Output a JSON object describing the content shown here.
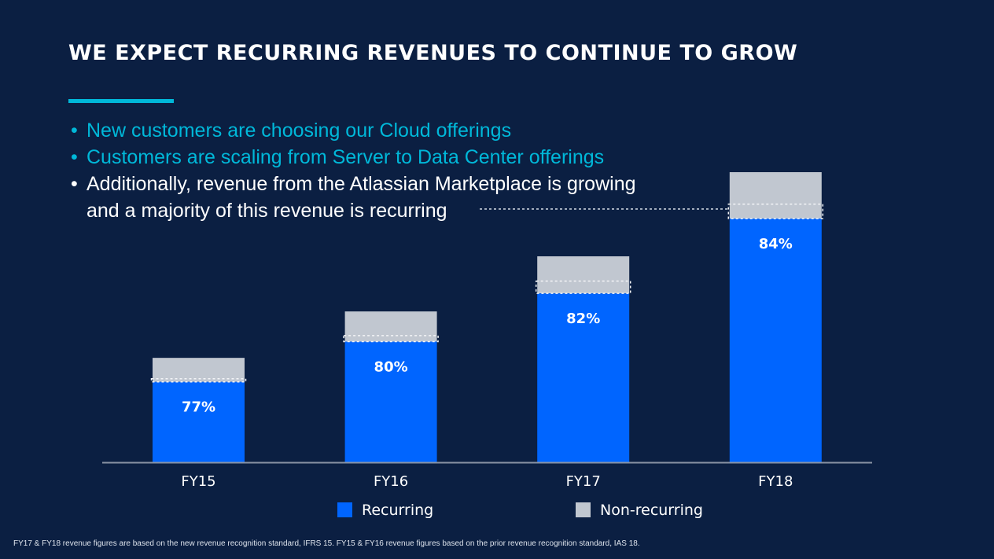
{
  "slide": {
    "title": "WE EXPECT RECURRING REVENUES TO CONTINUE TO GROW",
    "bullets": [
      {
        "text": "New customers are choosing our Cloud offerings",
        "color": "#00B8D9"
      },
      {
        "text": "Customers are scaling from Server to Data Center offerings",
        "color": "#00B8D9"
      },
      {
        "text": "Additionally, revenue from the Atlassian Marketplace is growing",
        "continuation": "and a majority of this revenue is recurring",
        "color": "#FFFFFF"
      }
    ],
    "bullet_glyph": "•",
    "footnote": "FY17 & FY18 revenue figures are based on the new revenue recognition standard, IFRS 15. FY15 & FY16 revenue figures based on the prior revenue recognition standard, IAS 18."
  },
  "colors": {
    "background": "#0B1F42",
    "accent": "#00B8D9",
    "recurring": "#0065FF",
    "non_recurring": "#C1C7D0"
  },
  "chart_data": {
    "type": "bar",
    "stacked": true,
    "title": "",
    "xlabel": "",
    "ylabel": "",
    "categories": [
      "FY15",
      "FY16",
      "FY17",
      "FY18"
    ],
    "relative_total_revenue": [
      0.36,
      0.52,
      0.71,
      1.0
    ],
    "series": [
      {
        "name": "Recurring",
        "color": "#0065FF",
        "values": [
          0.77,
          0.8,
          0.82,
          0.84
        ]
      },
      {
        "name": "Non-recurring",
        "color": "#C1C7D0",
        "values": [
          0.23,
          0.2,
          0.18,
          0.16
        ]
      }
    ],
    "data_labels": [
      "77%",
      "80%",
      "82%",
      "84%"
    ],
    "marketplace_highlight_share": [
      0.03,
      0.04,
      0.06,
      0.05
    ],
    "y_axis_visible": false,
    "grid": false,
    "legend": {
      "position": "bottom-center",
      "entries": [
        "Recurring",
        "Non-recurring"
      ]
    }
  }
}
